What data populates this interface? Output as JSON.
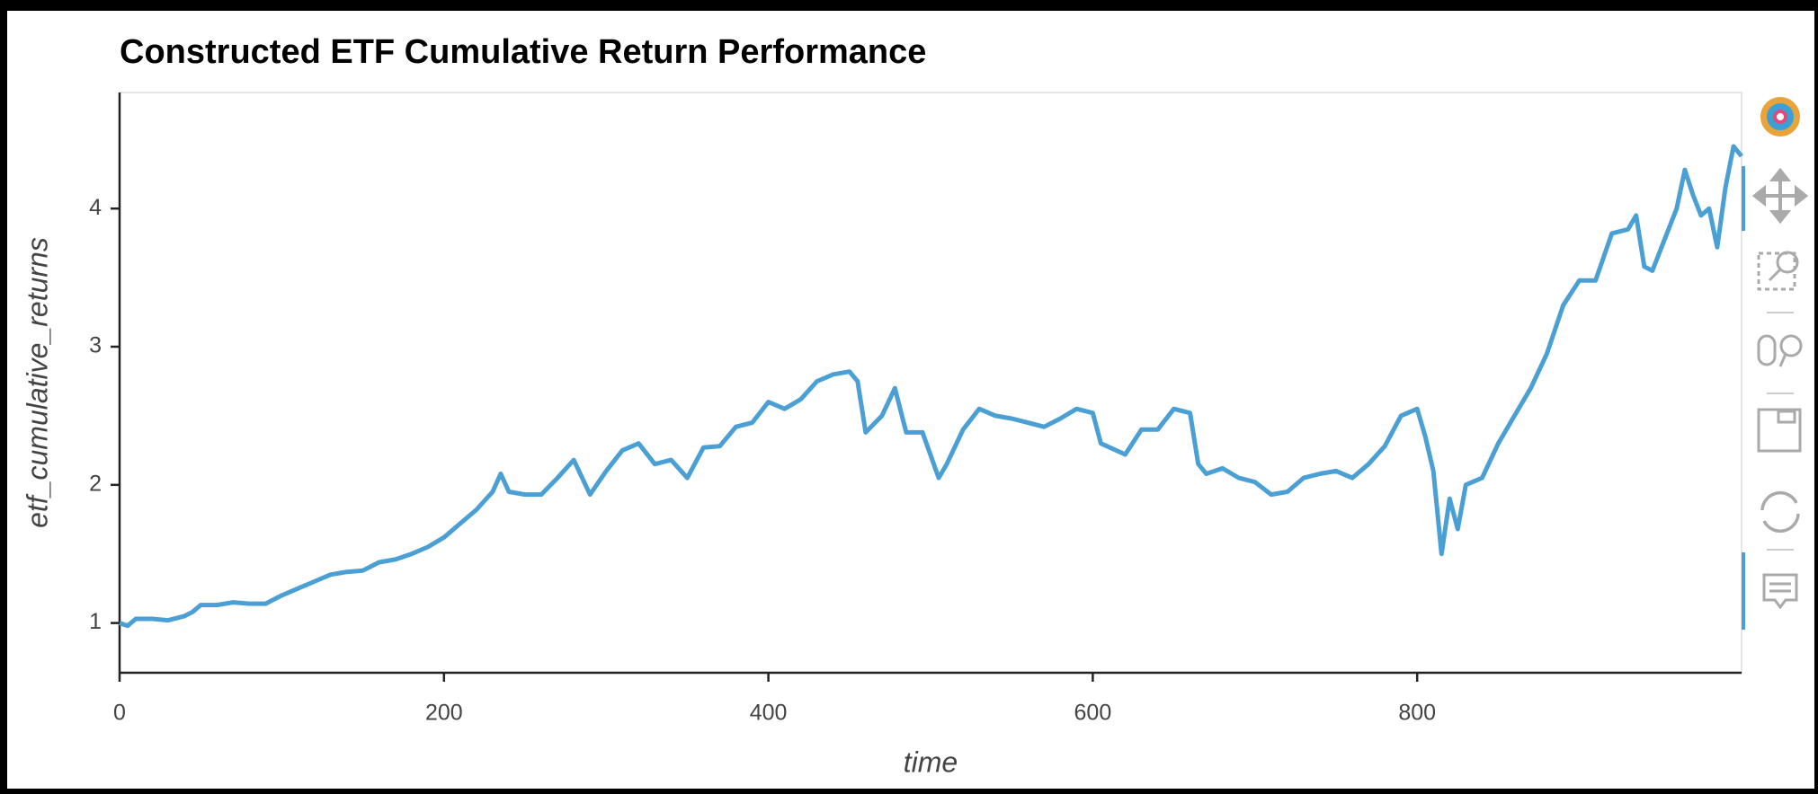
{
  "chart_data": {
    "type": "line",
    "title": "Constructed ETF Cumulative Return Performance",
    "xlabel": "time",
    "ylabel": "etf_cumulative_returns",
    "color": "#4a9fd5",
    "xlim": [
      0,
      1000
    ],
    "ylim": [
      0.64,
      4.84
    ],
    "xticks": [
      0,
      200,
      400,
      600,
      800
    ],
    "yticks": [
      1,
      2,
      3,
      4
    ],
    "grid": false,
    "x": [
      0,
      5,
      10,
      20,
      30,
      40,
      45,
      50,
      60,
      70,
      80,
      90,
      100,
      110,
      120,
      130,
      140,
      150,
      160,
      170,
      180,
      190,
      200,
      210,
      220,
      230,
      235,
      240,
      250,
      260,
      270,
      280,
      290,
      300,
      310,
      320,
      330,
      340,
      350,
      360,
      370,
      380,
      390,
      400,
      410,
      420,
      430,
      440,
      450,
      455,
      460,
      470,
      478,
      485,
      495,
      505,
      510,
      520,
      530,
      540,
      550,
      560,
      570,
      580,
      590,
      600,
      605,
      620,
      630,
      640,
      650,
      660,
      665,
      670,
      680,
      690,
      700,
      710,
      720,
      730,
      740,
      750,
      760,
      770,
      780,
      790,
      800,
      805,
      810,
      815,
      820,
      825,
      830,
      840,
      850,
      860,
      870,
      880,
      890,
      900,
      910,
      920,
      930,
      935,
      940,
      945,
      950,
      960,
      965,
      970,
      975,
      980,
      985,
      990,
      995,
      1000
    ],
    "values": [
      1.0,
      0.98,
      1.03,
      1.03,
      1.02,
      1.05,
      1.08,
      1.13,
      1.13,
      1.15,
      1.14,
      1.14,
      1.2,
      1.25,
      1.3,
      1.35,
      1.37,
      1.38,
      1.44,
      1.46,
      1.5,
      1.55,
      1.62,
      1.72,
      1.82,
      1.95,
      2.08,
      1.95,
      1.93,
      1.93,
      2.05,
      2.18,
      1.93,
      2.1,
      2.25,
      2.3,
      2.15,
      2.18,
      2.05,
      2.27,
      2.28,
      2.42,
      2.45,
      2.6,
      2.55,
      2.62,
      2.75,
      2.8,
      2.82,
      2.75,
      2.38,
      2.5,
      2.7,
      2.38,
      2.38,
      2.05,
      2.15,
      2.4,
      2.55,
      2.5,
      2.48,
      2.45,
      2.42,
      2.48,
      2.55,
      2.52,
      2.3,
      2.22,
      2.4,
      2.4,
      2.55,
      2.52,
      2.15,
      2.08,
      2.12,
      2.05,
      2.02,
      1.93,
      1.95,
      2.05,
      2.08,
      2.1,
      2.05,
      2.15,
      2.28,
      2.5,
      2.55,
      2.35,
      2.1,
      1.5,
      1.9,
      1.68,
      2.0,
      2.05,
      2.3,
      2.5,
      2.7,
      2.95,
      3.3,
      3.48,
      3.48,
      3.82,
      3.85,
      3.95,
      3.58,
      3.55,
      3.7,
      4.0,
      4.28,
      4.1,
      3.95,
      4.0,
      3.72,
      4.15,
      4.45,
      4.38
    ]
  }
}
